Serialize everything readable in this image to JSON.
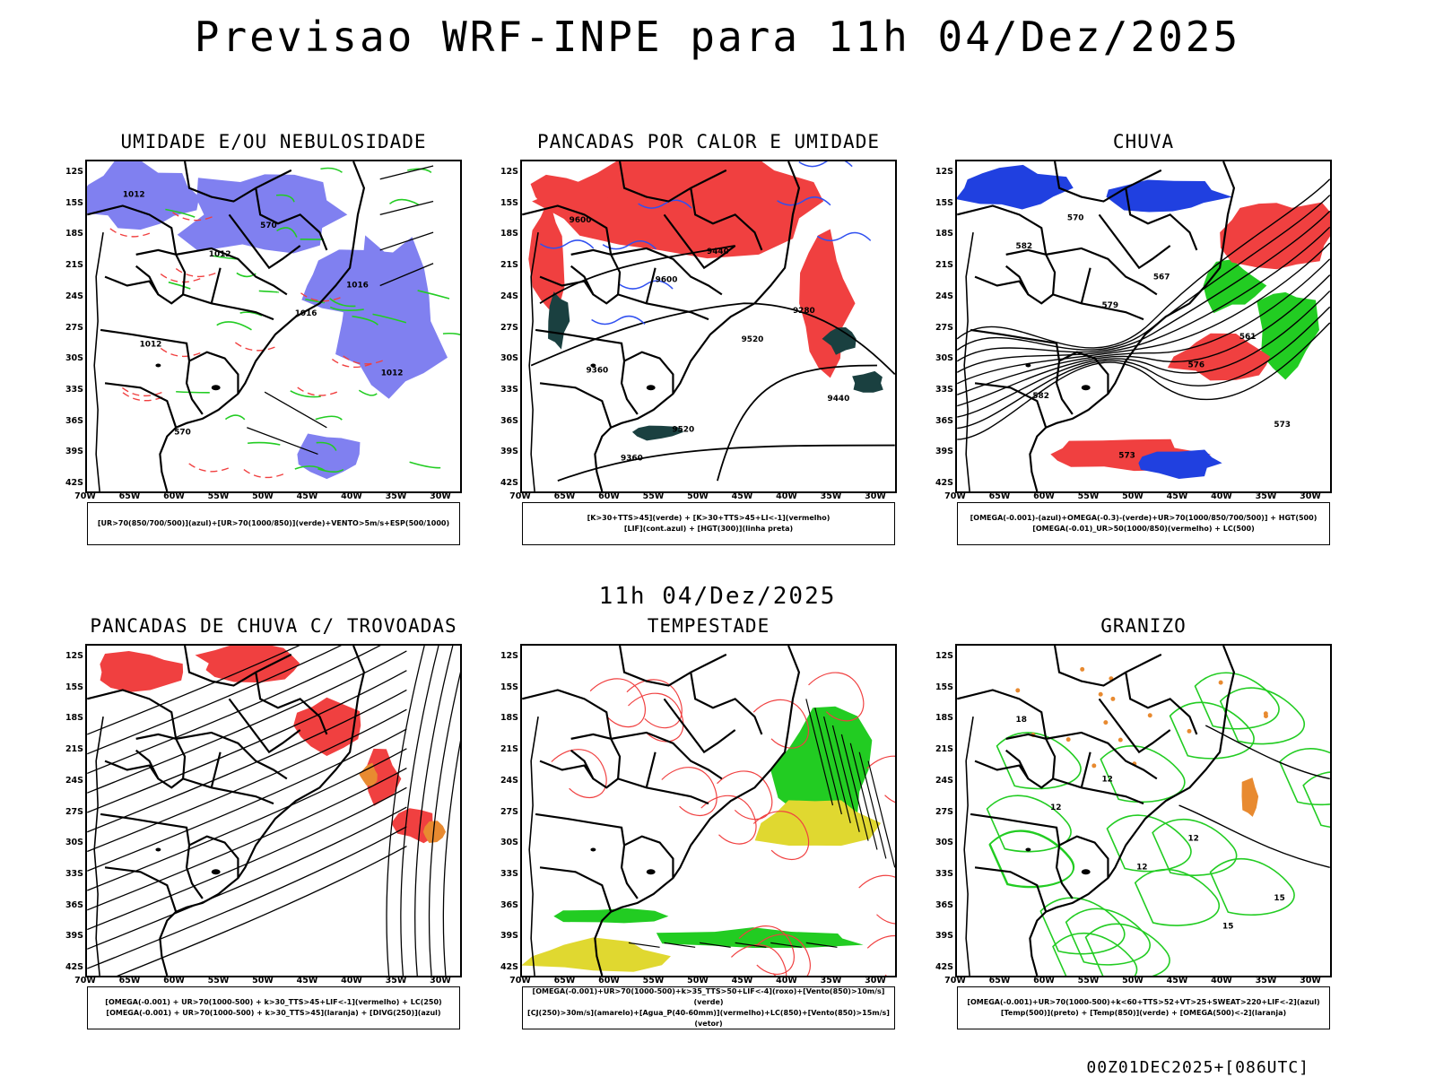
{
  "title": "Previsao WRF-INPE  para 11h 04/Dez/2025",
  "subtitle": "11h 04/Dez/2025",
  "footer": "00Z01DEC2025+[086UTC]",
  "lat_labels": [
    "12S",
    "15S",
    "18S",
    "21S",
    "24S",
    "27S",
    "30S",
    "33S",
    "36S",
    "39S",
    "42S"
  ],
  "lon_labels": [
    "70W",
    "65W",
    "60W",
    "55W",
    "50W",
    "45W",
    "40W",
    "35W",
    "30W"
  ],
  "panels": [
    {
      "title": "UMIDADE E/OU NEBULOSIDADE",
      "legend": [
        "[UR>70(850/700/500)](azul)+[UR>70(1000/850)](verde)+VENTO>5m/s+ESP(500/1000)"
      ],
      "contour_labels": [
        "1012",
        "1012",
        "1016",
        "1012",
        "570",
        "570",
        "1016",
        "1012"
      ]
    },
    {
      "title": "PANCADAS POR CALOR E UMIDADE",
      "legend": [
        "[K>30+TTS>45](verde) + [K>30+TTS>45+LI<-1](vermelho)",
        "[LIF](cont.azul) + [HGT(300)](linha preta)"
      ],
      "contour_labels": [
        "9600",
        "9600",
        "9520",
        "9440",
        "9360",
        "9440",
        "9280",
        "9360",
        "9520"
      ]
    },
    {
      "title": "CHUVA",
      "legend": [
        "[OMEGA(-0.001)-(azul)+OMEGA(-0.3)-(verde)+UR>70(1000/850/700/500)] + HGT(500)",
        "[OMEGA(-0.01)_UR>50(1000/850)(vermelho) + LC(500)"
      ],
      "contour_labels": [
        "582",
        "579",
        "576",
        "573",
        "570",
        "567",
        "561",
        "582",
        "573"
      ]
    },
    {
      "title": "PANCADAS DE CHUVA C/ TROVOADAS",
      "legend": [
        "[OMEGA(-0.001) + UR>70(1000-500) + k>30_TTS>45+LIF<-1](vermelho) + LC(250)",
        "[OMEGA(-0.001) + UR>70(1000-500) + k>30_TTS>45](laranja) + [DIVG(250)](azul)"
      ],
      "contour_labels": []
    },
    {
      "title": "TEMPESTADE",
      "legend": [
        "[OMEGA(-0.001)+UR>70(1000-500)+k>35_TTS>50+LIF<-4](roxo)+[Vento(850)>10m/s](verde)",
        "[CJ(250)>30m/s](amarelo)+[Agua_P(40-60mm)](vermelho)+LC(850)+[Vento(850)>15m/s](vetor)"
      ],
      "contour_labels": []
    },
    {
      "title": "GRANIZO",
      "legend": [
        "[OMEGA(-0.001)+UR>70(1000-500)+k<60+TTS>52+VT>25+SWEAT>220+LIF<-2](azul)",
        "[Temp(500)](preto) + [Temp(850)](verde) + [OMEGA(500)<-2](laranja)"
      ],
      "contour_labels": [
        "12",
        "12",
        "15",
        "18",
        "12",
        "12",
        "15"
      ]
    }
  ],
  "colors": {
    "blue": "#8080f0",
    "green": "#22cc22",
    "red": "#f04040",
    "darkgreen": "#1a4040",
    "yellow": "#e0d830",
    "orange": "#e88a30"
  }
}
